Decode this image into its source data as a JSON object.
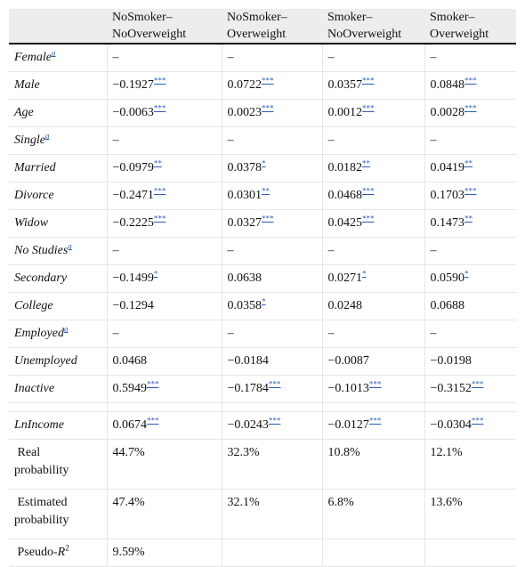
{
  "table": {
    "headers": [
      "",
      "NoSmoker–\nNoOverweight",
      "NoSmoker–\nOverweight",
      "Smoker–\nNoOverweight",
      "Smoker–\nOverweight"
    ],
    "header_lines": [
      [
        "",
        ""
      ],
      [
        "NoSmoker–",
        "NoOverweight"
      ],
      [
        "NoSmoker–",
        "Overweight"
      ],
      [
        "Smoker–",
        "NoOverweight"
      ],
      [
        "Smoker–",
        "Overweight"
      ]
    ],
    "rows": [
      {
        "var": "Female",
        "sup": "a",
        "cells": [
          {
            "v": "–",
            "s": ""
          },
          {
            "v": "–",
            "s": ""
          },
          {
            "v": "–",
            "s": ""
          },
          {
            "v": "–",
            "s": ""
          }
        ]
      },
      {
        "var": "Male",
        "sup": "",
        "cells": [
          {
            "v": "−0.1927",
            "s": "***"
          },
          {
            "v": "0.0722",
            "s": "***"
          },
          {
            "v": "0.0357",
            "s": "***"
          },
          {
            "v": "0.0848",
            "s": "***"
          }
        ]
      },
      {
        "var": "Age",
        "sup": "",
        "cells": [
          {
            "v": "−0.0063",
            "s": "***"
          },
          {
            "v": "0.0023",
            "s": "***"
          },
          {
            "v": "0.0012",
            "s": "***"
          },
          {
            "v": "0.0028",
            "s": "***"
          }
        ]
      },
      {
        "var": "Single",
        "sup": "a",
        "cells": [
          {
            "v": "–",
            "s": ""
          },
          {
            "v": "–",
            "s": ""
          },
          {
            "v": "–",
            "s": ""
          },
          {
            "v": "–",
            "s": ""
          }
        ]
      },
      {
        "var": "Married",
        "sup": "",
        "cells": [
          {
            "v": "−0.0979",
            "s": "**"
          },
          {
            "v": "0.0378",
            "s": "*"
          },
          {
            "v": "0.0182",
            "s": "**"
          },
          {
            "v": "0.0419",
            "s": "**"
          }
        ]
      },
      {
        "var": "Divorce",
        "sup": "",
        "cells": [
          {
            "v": "−0.2471",
            "s": "***"
          },
          {
            "v": "0.0301",
            "s": "**"
          },
          {
            "v": "0.0468",
            "s": "***"
          },
          {
            "v": "0.1703",
            "s": "***"
          }
        ]
      },
      {
        "var": "Widow",
        "sup": "",
        "cells": [
          {
            "v": "−0.2225",
            "s": "***"
          },
          {
            "v": "0.0327",
            "s": "***"
          },
          {
            "v": "0.0425",
            "s": "***"
          },
          {
            "v": "0.1473",
            "s": "**"
          }
        ]
      },
      {
        "var": "No Studies",
        "sup": "a",
        "cells": [
          {
            "v": "–",
            "s": ""
          },
          {
            "v": "–",
            "s": ""
          },
          {
            "v": "–",
            "s": ""
          },
          {
            "v": "–",
            "s": ""
          }
        ]
      },
      {
        "var": "Secondary",
        "sup": "",
        "cells": [
          {
            "v": "−0.1499",
            "s": "*"
          },
          {
            "v": "0.0638",
            "s": ""
          },
          {
            "v": "0.0271",
            "s": "*"
          },
          {
            "v": "0.0590",
            "s": "*"
          }
        ]
      },
      {
        "var": "College",
        "sup": "",
        "cells": [
          {
            "v": "−0.1294",
            "s": ""
          },
          {
            "v": "0.0358",
            "s": "*"
          },
          {
            "v": "0.0248",
            "s": ""
          },
          {
            "v": "0.0688",
            "s": ""
          }
        ]
      },
      {
        "var": "Employed",
        "sup": "a",
        "cells": [
          {
            "v": "–",
            "s": ""
          },
          {
            "v": "–",
            "s": ""
          },
          {
            "v": "–",
            "s": ""
          },
          {
            "v": "–",
            "s": ""
          }
        ]
      },
      {
        "var": "Unemployed",
        "sup": "",
        "cells": [
          {
            "v": "0.0468",
            "s": ""
          },
          {
            "v": "−0.0184",
            "s": ""
          },
          {
            "v": "−0.0087",
            "s": ""
          },
          {
            "v": "−0.0198",
            "s": ""
          }
        ]
      },
      {
        "var": "Inactive",
        "sup": "",
        "cells": [
          {
            "v": "0.5949",
            "s": "***"
          },
          {
            "v": "−0.1784",
            "s": "***"
          },
          {
            "v": "−0.1013",
            "s": "***"
          },
          {
            "v": "−0.3152",
            "s": "***"
          }
        ]
      }
    ],
    "lnincome": {
      "var": "LnIncome",
      "cells": [
        {
          "v": "0.0674",
          "s": "***"
        },
        {
          "v": "−0.0243",
          "s": "***"
        },
        {
          "v": "−0.0127",
          "s": "***"
        },
        {
          "v": "−0.0304",
          "s": "***"
        }
      ]
    },
    "real": {
      "label_lines": [
        "Real",
        "probability"
      ],
      "cells": [
        "44.7%",
        "32.3%",
        "10.8%",
        "12.1%"
      ]
    },
    "estimated": {
      "label_lines": [
        "Estimated",
        "probability"
      ],
      "cells": [
        "47.4%",
        "32.1%",
        "6.8%",
        "13.6%"
      ]
    },
    "pseudo": {
      "label": "Pseudo-",
      "label_em": "R",
      "label_sup": "2",
      "value": "9.59%"
    }
  }
}
